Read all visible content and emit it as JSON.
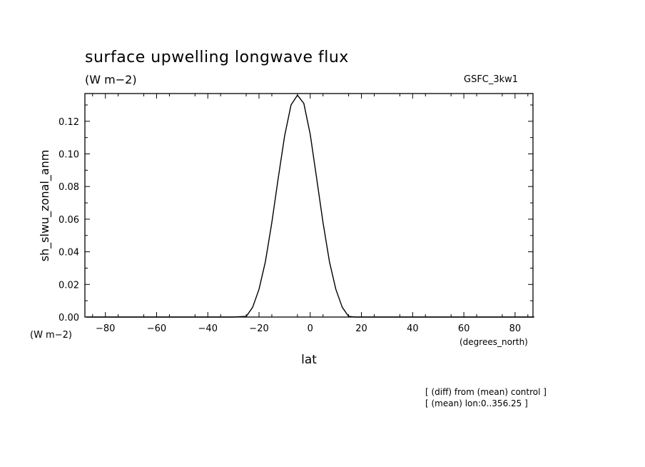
{
  "chart_data": {
    "type": "line",
    "title": "surface upwelling longwave flux",
    "units": "(W m−2)",
    "model_label": "GSFC_3kw1",
    "ylabel": "sh_slwu_zonal_anm",
    "y_units": "(W m−2)",
    "xlabel": "lat",
    "x_units": "(degrees_north)",
    "xlim": [
      -88,
      87
    ],
    "ylim": [
      0.0,
      0.137
    ],
    "x_ticks": [
      -80,
      -60,
      -40,
      -20,
      0,
      20,
      40,
      60,
      80
    ],
    "x_tick_labels": [
      "−80",
      "−60",
      "−40",
      "−20",
      "0",
      "20",
      "40",
      "60",
      "80"
    ],
    "y_ticks": [
      0.0,
      0.02,
      0.04,
      0.06,
      0.08,
      0.1,
      0.12
    ],
    "y_tick_labels": [
      "0.00",
      "0.02",
      "0.04",
      "0.06",
      "0.08",
      "0.10",
      "0.12"
    ],
    "grid": false,
    "series": [
      {
        "x": [
          -87.5,
          -30,
          -25,
          -22.5,
          -20,
          -17.5,
          -15,
          -12.5,
          -10,
          -7.5,
          -5,
          -2.5,
          0,
          2.5,
          5,
          7.5,
          10,
          12.5,
          15,
          17.5,
          20,
          22.5,
          25,
          30,
          87.5
        ],
        "y": [
          0.0,
          0.0,
          0.0004,
          0.006,
          0.017,
          0.034,
          0.058,
          0.085,
          0.111,
          0.13,
          0.136,
          0.131,
          0.112,
          0.085,
          0.058,
          0.034,
          0.017,
          0.006,
          0.0004,
          0.0,
          0.0,
          0.0,
          0.0,
          0.0,
          0.0
        ]
      }
    ]
  },
  "notes": [
    "[ (diff) from (mean) control ]",
    "[ (mean) lon:0..356.25 ]"
  ]
}
